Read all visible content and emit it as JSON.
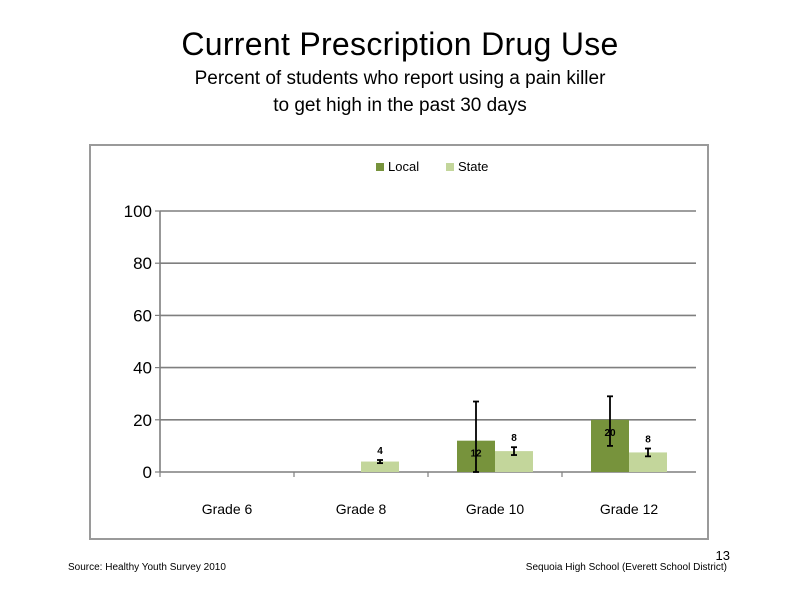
{
  "slide": {
    "title": "Current Prescription Drug Use",
    "subtitle_line1": "Percent of students who report using a pain killer",
    "subtitle_line2": "to get high in the past 30 days",
    "source": "Source: Healthy Youth Survey 2010",
    "school": "Sequoia High School (Everett School District)",
    "page_number": "13"
  },
  "chart_data": {
    "type": "bar",
    "categories": [
      "Grade 6",
      "Grade 8",
      "Grade 10",
      "Grade 12"
    ],
    "series": [
      {
        "name": "Local",
        "color": "#77933c",
        "values": [
          null,
          null,
          12,
          20
        ],
        "labels": [
          "",
          "",
          "12",
          "20"
        ],
        "error": [
          null,
          null,
          [
            0,
            27
          ],
          [
            10,
            29
          ]
        ]
      },
      {
        "name": "State",
        "color": "#c3d69b",
        "values": [
          null,
          4,
          8,
          7.5
        ],
        "labels": [
          "",
          "4",
          "8",
          "8"
        ],
        "error": [
          null,
          [
            3.4,
            4.6
          ],
          [
            6.5,
            9.5
          ],
          [
            6,
            9
          ]
        ]
      }
    ],
    "ylim": [
      0,
      100
    ],
    "yticks": [
      0,
      20,
      40,
      60,
      80,
      100
    ],
    "grid": true,
    "legend_position": "top"
  }
}
